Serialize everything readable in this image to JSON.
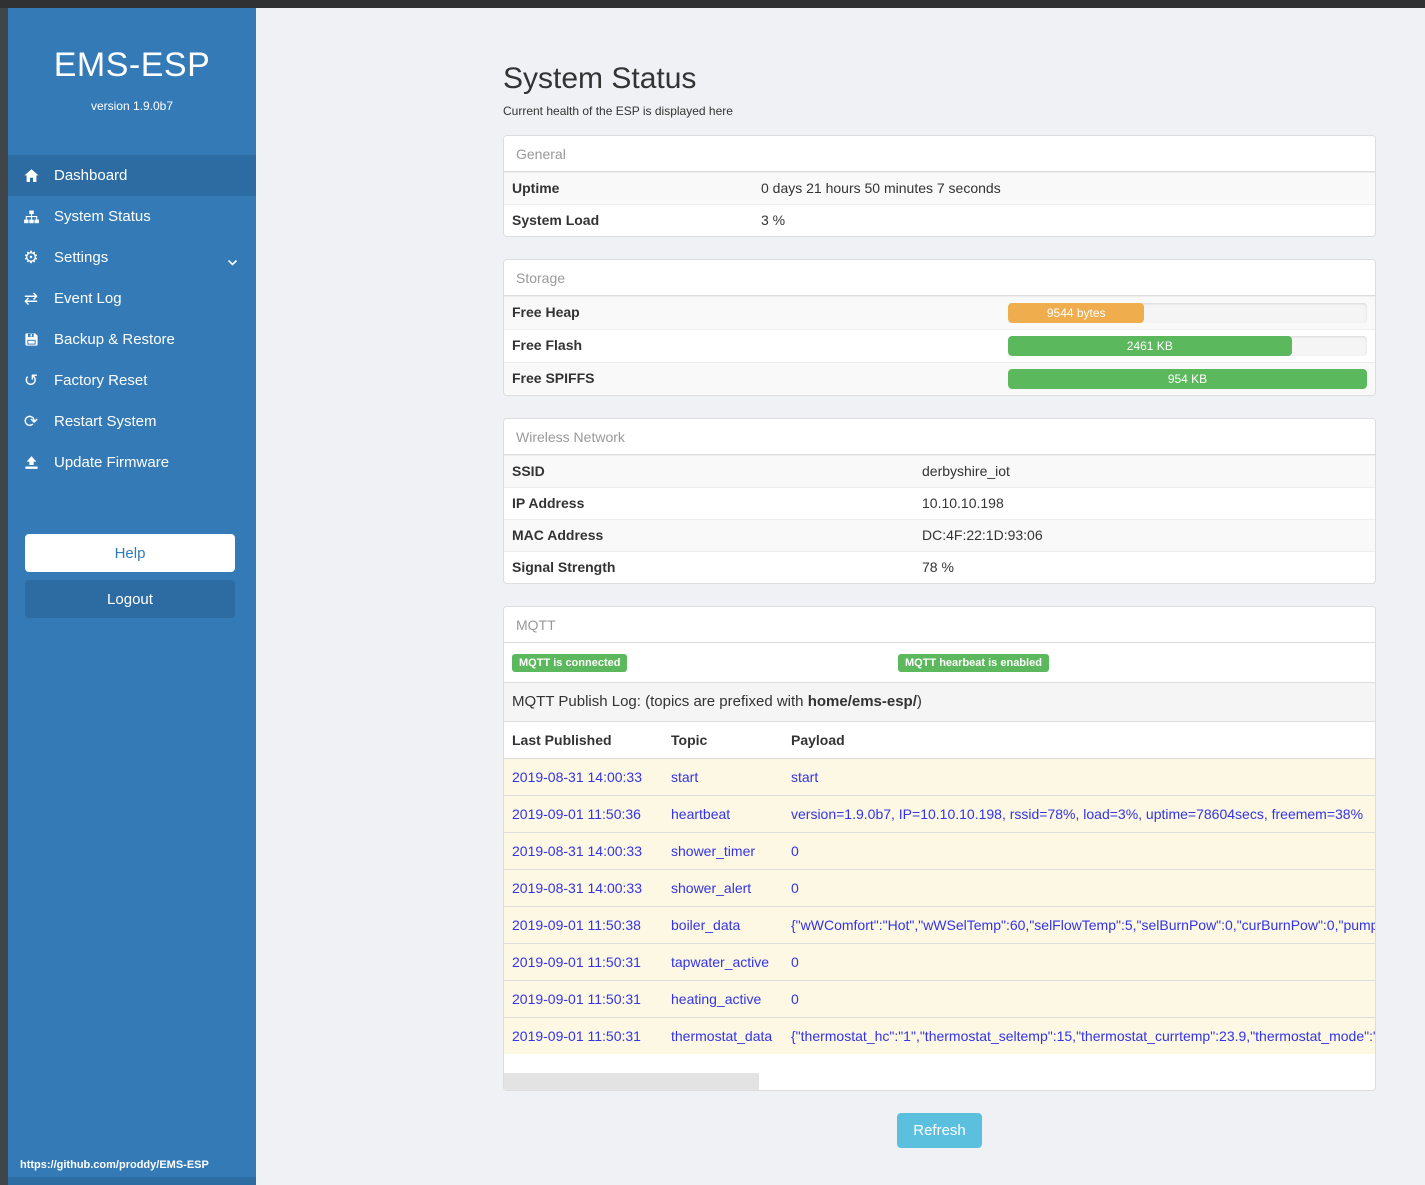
{
  "colors": {
    "sidebar_blue": "#337ab7",
    "sidebar_active_blue": "#2d6ca2",
    "success_green": "#5cb85c",
    "warning_orange": "#f0ad4e",
    "info_cyan": "#5bc0de",
    "log_row_cream": "#fcf8e3",
    "log_text_blue": "#3333e8"
  },
  "sidebar": {
    "brand": "EMS-ESP",
    "version": "version 1.9.0b7",
    "items": [
      {
        "label": "Dashboard",
        "icon": "home-icon",
        "active": true
      },
      {
        "label": "System Status",
        "icon": "sitemap-icon",
        "active": false
      },
      {
        "label": "Settings",
        "icon": "gear-icon",
        "active": false,
        "chevron": true
      },
      {
        "label": "Event Log",
        "icon": "exchange-icon",
        "active": false
      },
      {
        "label": "Backup & Restore",
        "icon": "save-icon",
        "active": false
      },
      {
        "label": "Factory Reset",
        "icon": "rotate-left-icon",
        "active": false
      },
      {
        "label": "Restart System",
        "icon": "sync-icon",
        "active": false
      },
      {
        "label": "Update Firmware",
        "icon": "upload-icon",
        "active": false
      }
    ],
    "help_label": "Help",
    "logout_label": "Logout",
    "footer_link": "https://github.com/proddy/EMS-ESP"
  },
  "page": {
    "title": "System Status",
    "subtitle": "Current health of the ESP is displayed here",
    "refresh_label": "Refresh"
  },
  "general": {
    "header": "General",
    "rows": [
      {
        "label": "Uptime",
        "value": "0 days 21 hours 50 minutes 7 seconds"
      },
      {
        "label": "System Load",
        "value": "3 %"
      }
    ]
  },
  "storage": {
    "header": "Storage",
    "rows": [
      {
        "label": "Free Heap",
        "value": "9544 bytes",
        "percent": 38,
        "color": "#f0ad4e"
      },
      {
        "label": "Free Flash",
        "value": "2461 KB",
        "percent": 79,
        "color": "#5cb85c"
      },
      {
        "label": "Free SPIFFS",
        "value": "954 KB",
        "percent": 100,
        "color": "#5cb85c"
      }
    ]
  },
  "wireless": {
    "header": "Wireless Network",
    "rows": [
      {
        "label": "SSID",
        "value": "derbyshire_iot"
      },
      {
        "label": "IP Address",
        "value": "10.10.10.198"
      },
      {
        "label": "MAC Address",
        "value": "DC:4F:22:1D:93:06"
      },
      {
        "label": "Signal Strength",
        "value": "78 %"
      }
    ]
  },
  "mqtt": {
    "header": "MQTT",
    "badges": [
      "MQTT is connected",
      "MQTT hearbeat is enabled"
    ],
    "publish_log": {
      "prefix": "MQTT Publish Log: (topics are prefixed with ",
      "bold": "home/ems-esp/",
      "suffix": ")"
    },
    "columns": [
      "Last Published",
      "Topic",
      "Payload"
    ],
    "rows": [
      {
        "published": "2019-08-31 14:00:33",
        "topic": "start",
        "payload": "start"
      },
      {
        "published": "2019-09-01 11:50:36",
        "topic": "heartbeat",
        "payload": "version=1.9.0b7, IP=10.10.10.198, rssid=78%, load=3%, uptime=78604secs, freemem=38%"
      },
      {
        "published": "2019-08-31 14:00:33",
        "topic": "shower_timer",
        "payload": "0"
      },
      {
        "published": "2019-08-31 14:00:33",
        "topic": "shower_alert",
        "payload": "0"
      },
      {
        "published": "2019-09-01 11:50:38",
        "topic": "boiler_data",
        "payload": "{\"wWComfort\":\"Hot\",\"wWSelTemp\":60,\"selFlowTemp\":5,\"selBurnPow\":0,\"curBurnPow\":0,\"pump"
      },
      {
        "published": "2019-09-01 11:50:31",
        "topic": "tapwater_active",
        "payload": "0"
      },
      {
        "published": "2019-09-01 11:50:31",
        "topic": "heating_active",
        "payload": "0"
      },
      {
        "published": "2019-09-01 11:50:31",
        "topic": "thermostat_data",
        "payload": "{\"thermostat_hc\":\"1\",\"thermostat_seltemp\":15,\"thermostat_currtemp\":23.9,\"thermostat_mode\":\""
      }
    ]
  }
}
